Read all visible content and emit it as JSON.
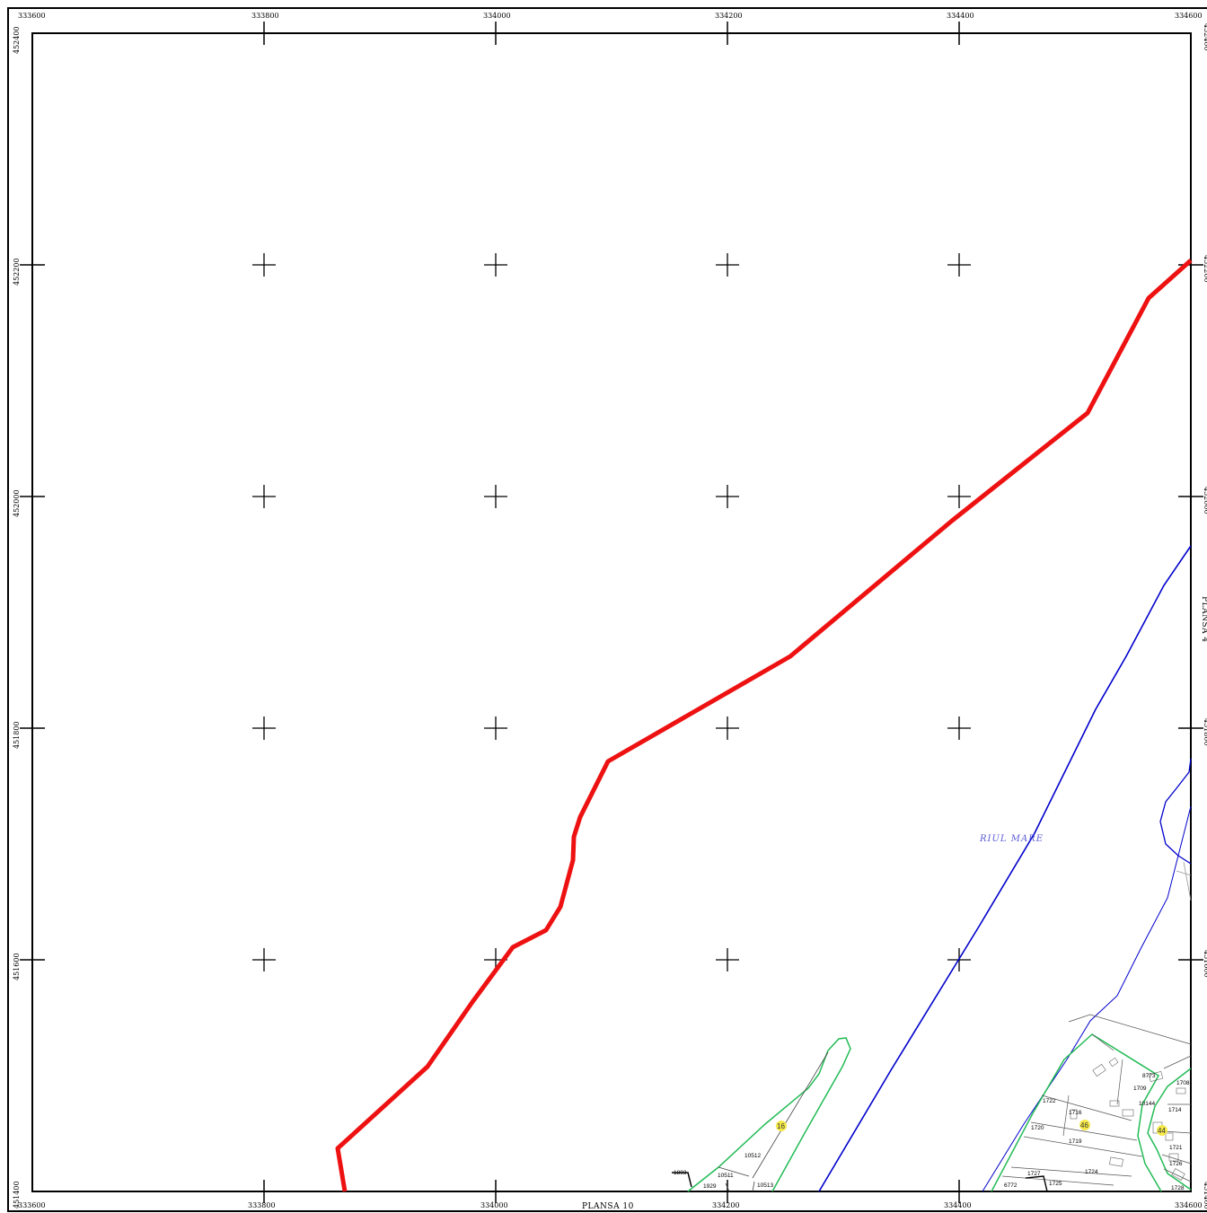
{
  "map": {
    "grid": {
      "x_labels": [
        "333600",
        "333800",
        "334000",
        "334200",
        "334400",
        "334600"
      ],
      "y_labels": [
        "452400",
        "452200",
        "452000",
        "451800",
        "451600",
        "451400"
      ]
    },
    "sheet_labels": {
      "bottom": "PLANSA 10",
      "right": "PLANSA 4"
    },
    "river_name": "RIUL MARE",
    "parcels": [
      "10512",
      "10511",
      "10513",
      "1929",
      "1893",
      "1722",
      "1716",
      "1720",
      "1719",
      "1724",
      "1727",
      "1725",
      "6772",
      "8773",
      "1709",
      "10144",
      "1708",
      "1714",
      "1721",
      "1726",
      "1728"
    ],
    "zone_badges": [
      "16",
      "46",
      "44"
    ],
    "colors": {
      "boundary": "#ee1111",
      "river": "#0000cc",
      "intravilan": "#22bb55",
      "badge": "#f5e94a",
      "grid": "#000000"
    }
  }
}
